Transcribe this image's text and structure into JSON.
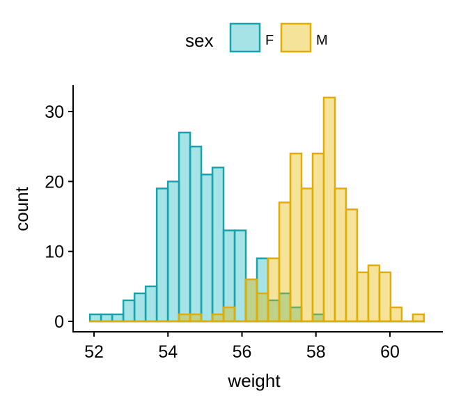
{
  "chart_data": {
    "type": "histogram",
    "title": "",
    "xlabel": "weight",
    "ylabel": "count",
    "xlim": [
      51.6,
      61.3
    ],
    "ylim": [
      -1.5,
      33.8
    ],
    "xticks": [
      52,
      54,
      56,
      58,
      60
    ],
    "yticks": [
      0,
      10,
      20,
      30
    ],
    "bin_start": 51.89,
    "bin_width": 0.301,
    "legend": {
      "title": "sex",
      "placement": "top",
      "entries": [
        "F",
        "M"
      ]
    },
    "series": [
      {
        "name": "F",
        "stroke": "#17a2ac",
        "fill": "rgba(0,175,187,0.35)",
        "counts": [
          1,
          1,
          1,
          3,
          4,
          5,
          19,
          20,
          27,
          25,
          21,
          22,
          13,
          13,
          6,
          9,
          3,
          4,
          2,
          0,
          1,
          0,
          0,
          0,
          0,
          0,
          0,
          0,
          0,
          0
        ]
      },
      {
        "name": "M",
        "stroke": "#e2ad00",
        "fill": "rgba(231,184,0,0.4)",
        "counts": [
          0,
          0,
          0,
          0,
          0,
          0,
          0,
          0,
          1,
          1,
          0,
          1,
          2,
          0,
          6,
          4,
          9,
          17,
          24,
          19,
          24,
          32,
          19,
          16,
          7,
          8,
          7,
          2,
          0,
          1
        ]
      }
    ]
  }
}
